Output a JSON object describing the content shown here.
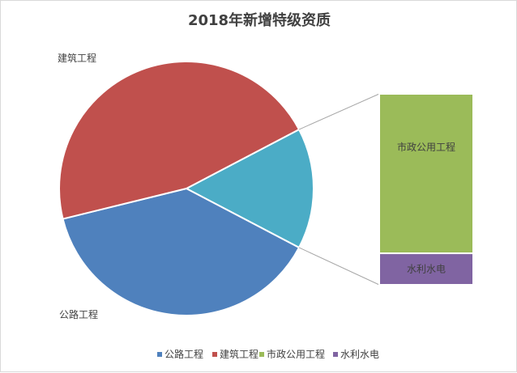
{
  "chart_data": {
    "type": "pie",
    "subtype": "pie-of-bar",
    "title": "2018年新增特级资质",
    "slices": [
      {
        "name": "公路工程",
        "value": 5,
        "color": "#4F81BD"
      },
      {
        "name": "建筑工程",
        "value": 6,
        "color": "#C0504D"
      }
    ],
    "combined_slice": {
      "value": 2,
      "color": "#4BACC6"
    },
    "secondary_bar": [
      {
        "name": "市政公用工程",
        "value": 1.67,
        "color": "#9BBB59"
      },
      {
        "name": "水利水电",
        "value": 0.33,
        "color": "#8064A2"
      }
    ],
    "legend": {
      "position": "bottom",
      "items": [
        {
          "name": "公路工程",
          "color": "#4F81BD"
        },
        {
          "name": "建筑工程",
          "color": "#C0504D"
        },
        {
          "name": "市政公用工程",
          "color": "#9BBB59"
        },
        {
          "name": "水利水电",
          "color": "#8064A2"
        }
      ]
    }
  }
}
